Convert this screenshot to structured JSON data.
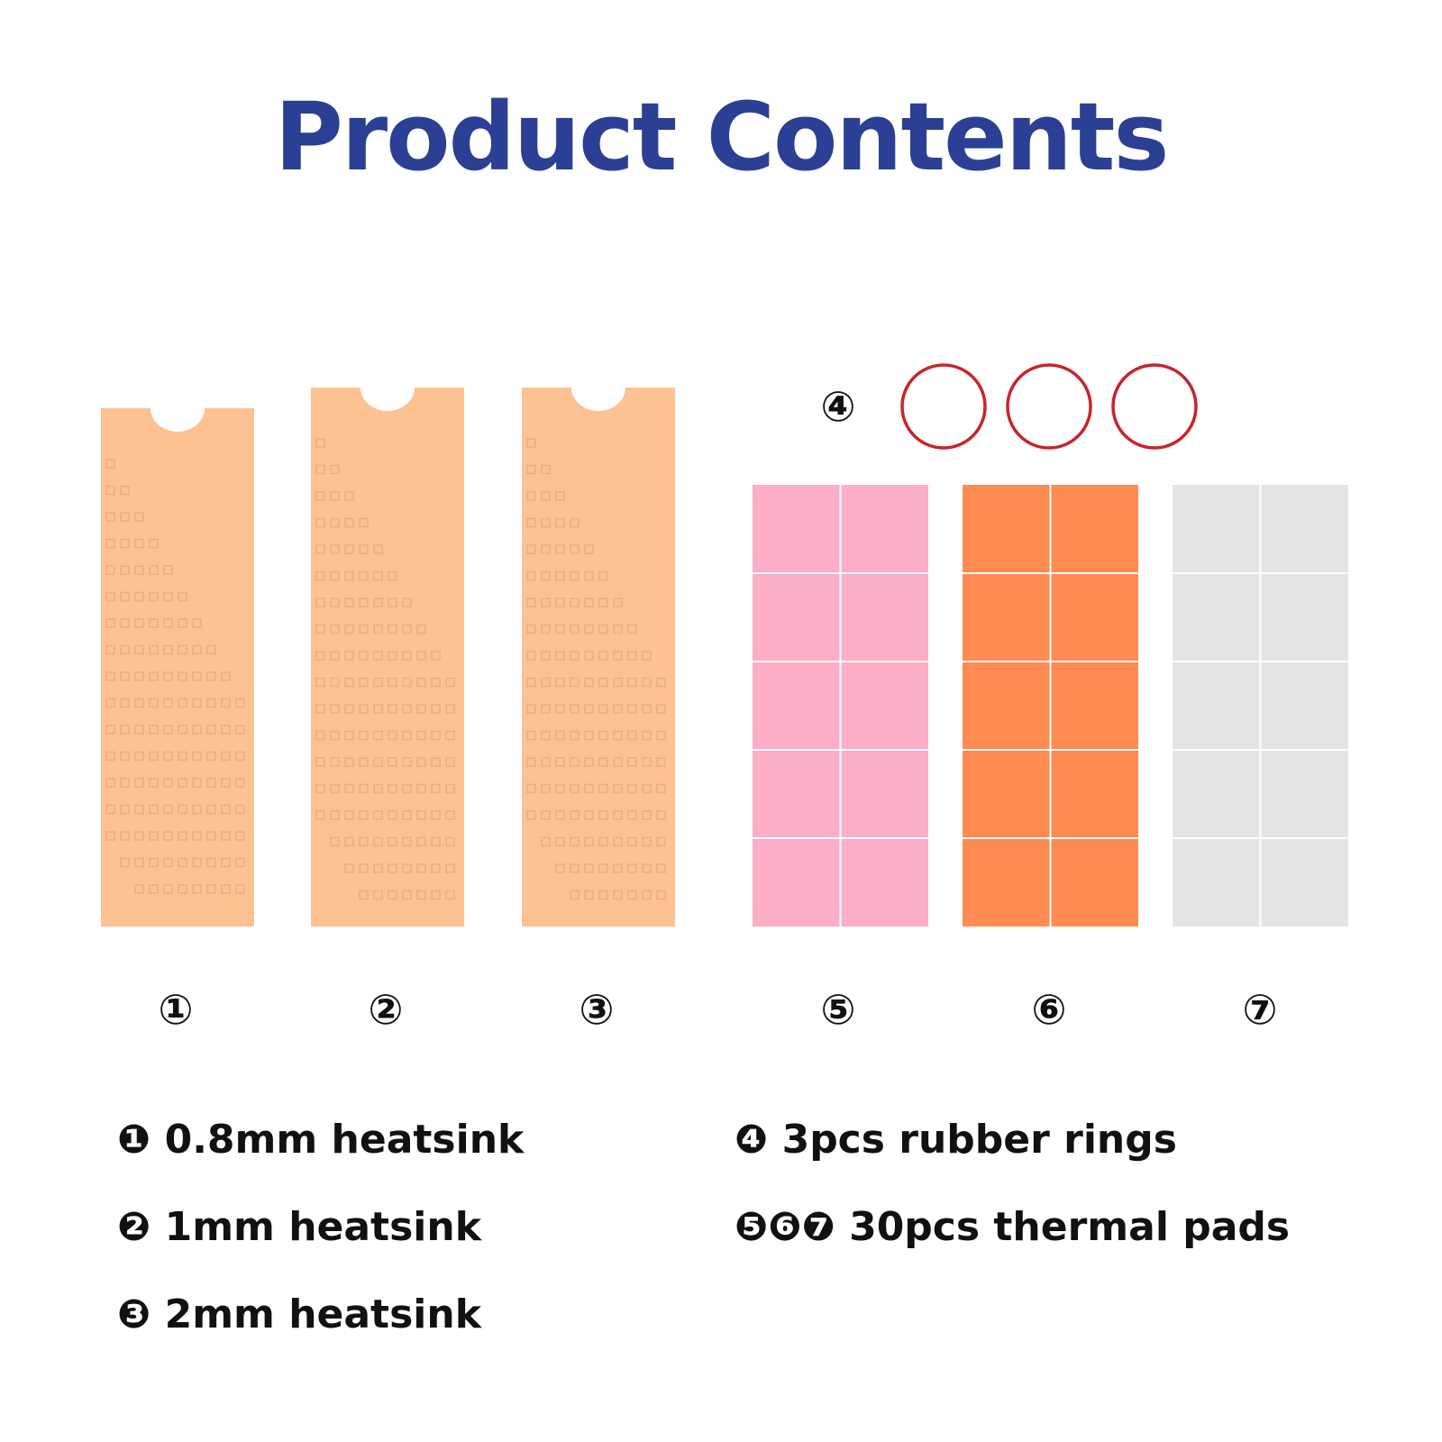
{
  "title": "Product Contents",
  "colors": {
    "title": "#2b3f94",
    "heatsink": "#fdc192",
    "heatsink_dot": "#f0ae7d",
    "pad_pink": "#fbaec5",
    "pad_orange": "#ff8a52",
    "pad_gray": "#e4e4e6",
    "ring": "#c6262b"
  },
  "item_numbers": {
    "n1": "①",
    "n2": "②",
    "n3": "③",
    "n4": "④",
    "n5": "⑤",
    "n6": "⑥",
    "n7": "⑦"
  },
  "legend": {
    "item1": "❶ 0.8mm heatsink",
    "item2": "❷ 1mm heatsink",
    "item3": "❸ 2mm heatsink",
    "item4": "❹ 3pcs rubber rings",
    "item5": "❺❻❼ 30pcs thermal pads"
  }
}
